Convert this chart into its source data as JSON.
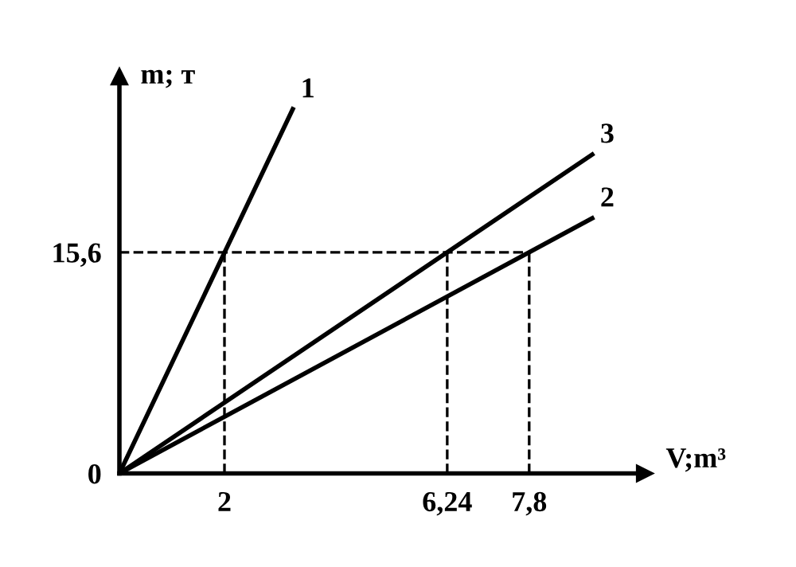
{
  "chart_data": {
    "type": "line",
    "xlabel": "V;m³",
    "ylabel": "m; т",
    "xlim": [
      0,
      10
    ],
    "ylim": [
      0,
      28
    ],
    "xticks": [
      {
        "value": 0,
        "label": null
      },
      2,
      {
        "value": 6.24,
        "label": "6,24"
      },
      {
        "value": 7.8,
        "label": "7,8"
      }
    ],
    "yticks": [
      0,
      {
        "value": 15.6,
        "label": "15,6"
      }
    ],
    "grid": false,
    "legend": false,
    "marker": "none",
    "series": [
      {
        "name": "1",
        "color": "#000000",
        "x": [
          0,
          3.3
        ],
        "values": [
          0,
          25.7
        ]
      },
      {
        "name": "3",
        "color": "#000000",
        "x": [
          0,
          9.0
        ],
        "values": [
          0,
          22.5
        ]
      },
      {
        "name": "2",
        "color": "#000000",
        "x": [
          0,
          9.0
        ],
        "values": [
          0,
          18.0
        ]
      },
      {
        "color": "#000000",
        "line_style": "dashed",
        "x": [
          0,
          7.8
        ],
        "values": [
          15.6,
          15.6
        ]
      },
      {
        "color": "#000000",
        "line_style": "dashed",
        "x": [
          2,
          2
        ],
        "values": [
          0,
          15.6
        ]
      },
      {
        "color": "#000000",
        "line_style": "dashed",
        "x": [
          6.24,
          6.24
        ],
        "values": [
          0,
          15.6
        ]
      },
      {
        "color": "#000000",
        "line_style": "dashed",
        "x": [
          7.8,
          7.8
        ],
        "values": [
          0,
          15.6
        ]
      }
    ]
  }
}
